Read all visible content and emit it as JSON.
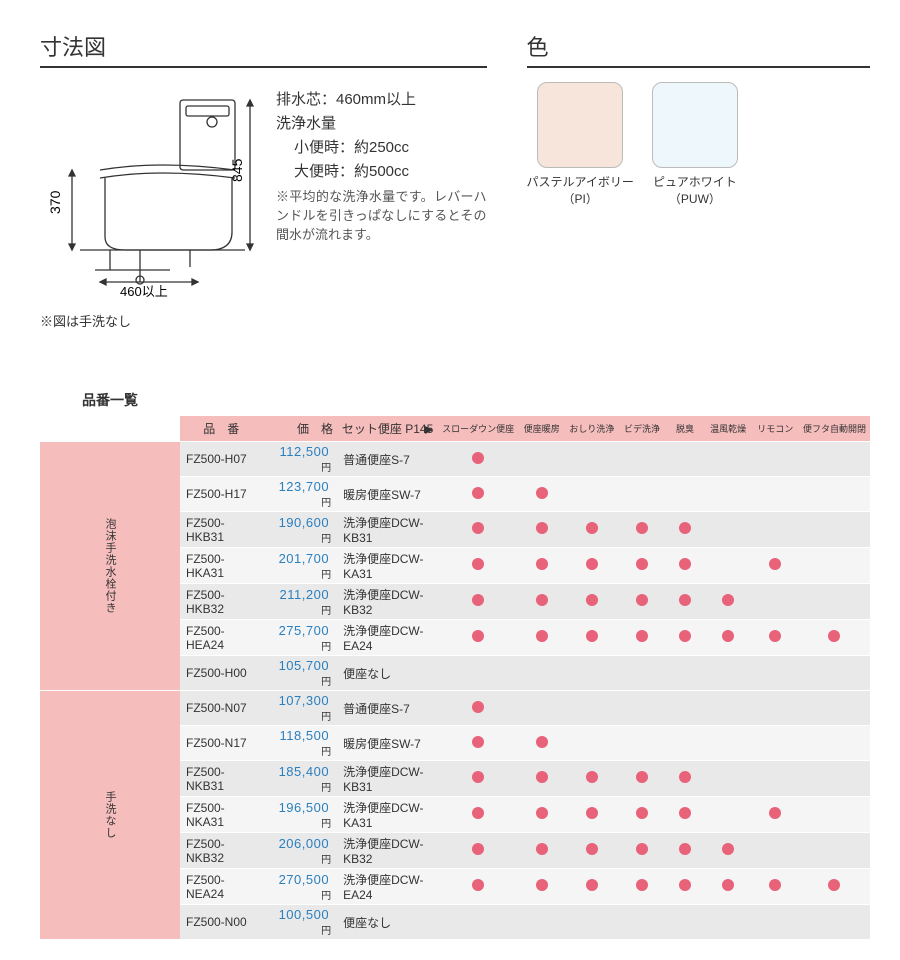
{
  "sections": {
    "dimensions_title": "寸法図",
    "colors_title": "色",
    "product_list_title": "品番一覧"
  },
  "dimensions": {
    "height_side": "370",
    "height_tank": "845",
    "drain_label": "460以上",
    "caption": "※図は手洗なし",
    "notes": {
      "drain_center": "排水芯：460mm以上",
      "flush_heading": "洗浄水量",
      "flush_small": "小便時：約250cc",
      "flush_large": "大便時：約500cc",
      "footnote": "※平均的な洗浄水量です。レバーハンドルを引きっぱなしにするとその間水が流れます。"
    }
  },
  "colors": [
    {
      "name": "パステルアイボリー",
      "code": "（PI）",
      "hex": "#f7e5dc"
    },
    {
      "name": "ピュアホワイト",
      "code": "（PUW）",
      "hex": "#eef7fb"
    }
  ],
  "table": {
    "headers": {
      "model": "品　番",
      "price": "価　格",
      "set": "セット便座 P145",
      "features": [
        "スローダウン便座",
        "便座暖房",
        "おしり洗浄",
        "ビデ洗浄",
        "脱臭",
        "温風乾燥",
        "リモコン",
        "便フタ自動開閉"
      ]
    },
    "price_unit": "円",
    "groups": [
      {
        "label": "泡沫手洗水栓付き",
        "rows": [
          {
            "model": "FZ500-H07",
            "price": "112,500",
            "set": "普通便座S-7",
            "feat": [
              1,
              0,
              0,
              0,
              0,
              0,
              0,
              0
            ]
          },
          {
            "model": "FZ500-H17",
            "price": "123,700",
            "set": "暖房便座SW-7",
            "feat": [
              1,
              1,
              0,
              0,
              0,
              0,
              0,
              0
            ]
          },
          {
            "model": "FZ500-HKB31",
            "price": "190,600",
            "set": "洗浄便座DCW-KB31",
            "feat": [
              1,
              1,
              1,
              1,
              1,
              0,
              0,
              0
            ]
          },
          {
            "model": "FZ500-HKA31",
            "price": "201,700",
            "set": "洗浄便座DCW-KA31",
            "feat": [
              1,
              1,
              1,
              1,
              1,
              0,
              1,
              0
            ]
          },
          {
            "model": "FZ500-HKB32",
            "price": "211,200",
            "set": "洗浄便座DCW-KB32",
            "feat": [
              1,
              1,
              1,
              1,
              1,
              1,
              0,
              0
            ]
          },
          {
            "model": "FZ500-HEA24",
            "price": "275,700",
            "set": "洗浄便座DCW-EA24",
            "feat": [
              1,
              1,
              1,
              1,
              1,
              1,
              1,
              1
            ]
          },
          {
            "model": "FZ500-H00",
            "price": "105,700",
            "set": "便座なし",
            "feat": [
              0,
              0,
              0,
              0,
              0,
              0,
              0,
              0
            ]
          }
        ]
      },
      {
        "label": "手洗なし",
        "rows": [
          {
            "model": "FZ500-N07",
            "price": "107,300",
            "set": "普通便座S-7",
            "feat": [
              1,
              0,
              0,
              0,
              0,
              0,
              0,
              0
            ]
          },
          {
            "model": "FZ500-N17",
            "price": "118,500",
            "set": "暖房便座SW-7",
            "feat": [
              1,
              1,
              0,
              0,
              0,
              0,
              0,
              0
            ]
          },
          {
            "model": "FZ500-NKB31",
            "price": "185,400",
            "set": "洗浄便座DCW-KB31",
            "feat": [
              1,
              1,
              1,
              1,
              1,
              0,
              0,
              0
            ]
          },
          {
            "model": "FZ500-NKA31",
            "price": "196,500",
            "set": "洗浄便座DCW-KA31",
            "feat": [
              1,
              1,
              1,
              1,
              1,
              0,
              1,
              0
            ]
          },
          {
            "model": "FZ500-NKB32",
            "price": "206,000",
            "set": "洗浄便座DCW-KB32",
            "feat": [
              1,
              1,
              1,
              1,
              1,
              1,
              0,
              0
            ]
          },
          {
            "model": "FZ500-NEA24",
            "price": "270,500",
            "set": "洗浄便座DCW-EA24",
            "feat": [
              1,
              1,
              1,
              1,
              1,
              1,
              1,
              1
            ]
          },
          {
            "model": "FZ500-N00",
            "price": "100,500",
            "set": "便座なし",
            "feat": [
              0,
              0,
              0,
              0,
              0,
              0,
              0,
              0
            ]
          }
        ]
      }
    ]
  },
  "style": {
    "header_bg": "#f6bdbd",
    "dot_color": "#e8627a",
    "stripe_colors": [
      "#e9e9e9",
      "#f5f5f5"
    ],
    "price_color": "#2a7fbf"
  }
}
